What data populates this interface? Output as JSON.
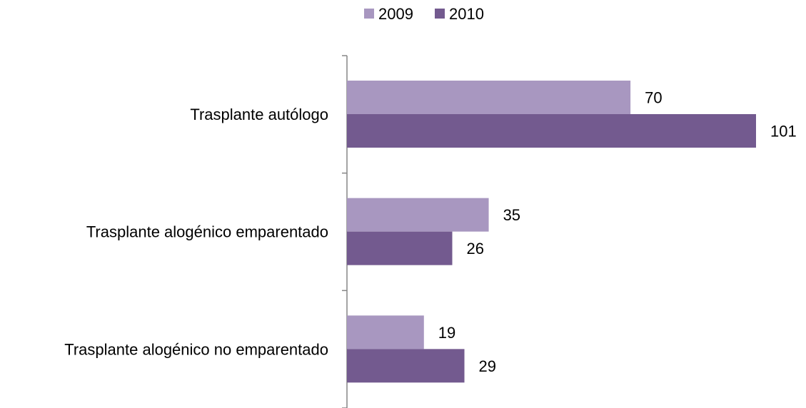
{
  "chart_data": {
    "type": "bar",
    "orientation": "horizontal",
    "categories": [
      "Trasplante autólogo",
      "Trasplante alogénico emparentado",
      "Trasplante alogénico no emparentado"
    ],
    "series": [
      {
        "name": "2009",
        "values": [
          70,
          35,
          19
        ],
        "color": "#a897c0"
      },
      {
        "name": "2010",
        "values": [
          101,
          26,
          29
        ],
        "color": "#735a8f"
      }
    ],
    "title": "",
    "xlabel": "",
    "ylabel": "",
    "xlim": [
      0,
      101
    ],
    "grid": false,
    "legend": "top",
    "data_labels": true
  }
}
